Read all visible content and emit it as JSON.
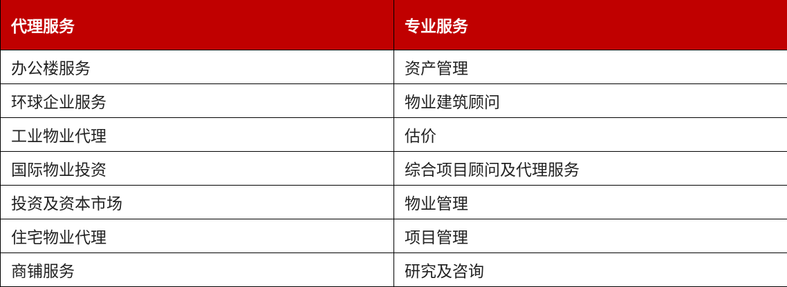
{
  "header": {
    "agency": "代理服务",
    "professional": "专业服务"
  },
  "rows": [
    [
      "办公楼服务",
      "资产管理"
    ],
    [
      "环球企业服务",
      "物业建筑顾问"
    ],
    [
      "工业物业代理",
      "估价"
    ],
    [
      "国际物业投资",
      "综合项目顾问及代理服务"
    ],
    [
      "投资及资本市场",
      "物业管理"
    ],
    [
      "住宅物业代理",
      "项目管理"
    ],
    [
      "商铺服务",
      "研究及咨询"
    ]
  ],
  "colors": {
    "header_bg": "#c00000",
    "header_text": "#ffffff"
  }
}
